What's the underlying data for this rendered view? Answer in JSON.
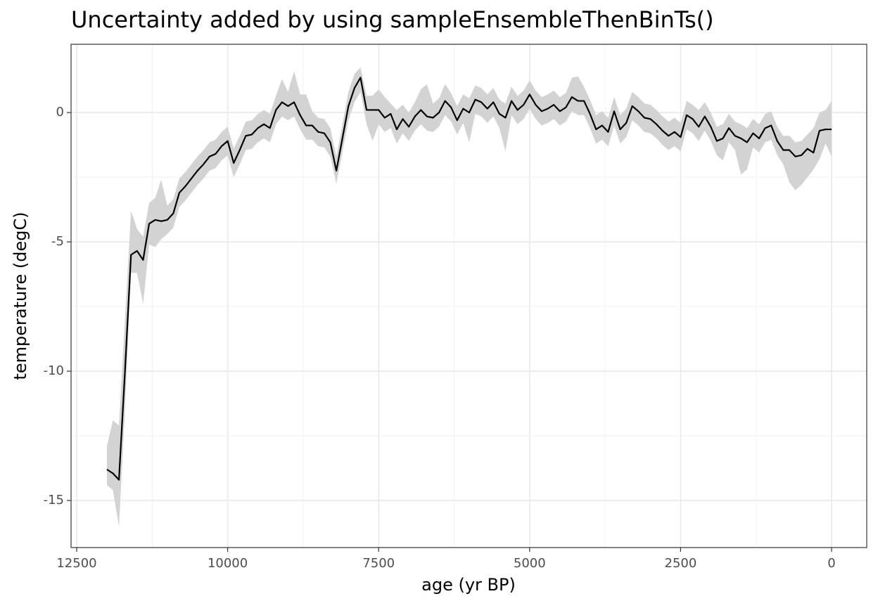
{
  "chart_data": {
    "type": "line",
    "title": "Uncertainty added by using sampleEnsembleThenBinTs()",
    "x_label": "age (yr BP)",
    "y_label": "temperature (degC)",
    "x": [
      12000,
      11900,
      11800,
      11700,
      11600,
      11500,
      11400,
      11300,
      11200,
      11100,
      11000,
      10900,
      10800,
      10700,
      10600,
      10500,
      10400,
      10300,
      10200,
      10100,
      10000,
      9900,
      9800,
      9700,
      9600,
      9500,
      9400,
      9300,
      9200,
      9100,
      9000,
      8900,
      8800,
      8700,
      8600,
      8500,
      8400,
      8300,
      8200,
      8100,
      8000,
      7900,
      7800,
      7700,
      7600,
      7500,
      7400,
      7300,
      7200,
      7100,
      7000,
      6900,
      6800,
      6700,
      6600,
      6500,
      6400,
      6300,
      6200,
      6100,
      6000,
      5900,
      5800,
      5700,
      5600,
      5500,
      5400,
      5300,
      5200,
      5100,
      5000,
      4900,
      4800,
      4700,
      4600,
      4500,
      4400,
      4300,
      4200,
      4100,
      4000,
      3900,
      3800,
      3700,
      3600,
      3500,
      3400,
      3300,
      3200,
      3100,
      3000,
      2900,
      2800,
      2700,
      2600,
      2500,
      2400,
      2300,
      2200,
      2100,
      2000,
      1900,
      1800,
      1700,
      1600,
      1500,
      1400,
      1300,
      1200,
      1100,
      1000,
      900,
      800,
      700,
      600,
      500,
      400,
      300,
      200,
      100,
      0
    ],
    "values": [
      -13.8,
      -13.95,
      -14.2,
      -10,
      -5.5,
      -5.35,
      -5.7,
      -4.3,
      -4.15,
      -4.2,
      -4.15,
      -3.9,
      -3.1,
      -2.85,
      -2.55,
      -2.25,
      -2.0,
      -1.7,
      -1.6,
      -1.3,
      -1.1,
      -1.95,
      -1.45,
      -0.9,
      -0.85,
      -0.6,
      -0.45,
      -0.6,
      0.1,
      0.4,
      0.25,
      0.4,
      -0.1,
      -0.5,
      -0.5,
      -0.75,
      -0.8,
      -1.15,
      -2.25,
      -1.0,
      0.25,
      0.95,
      1.35,
      0.1,
      0.1,
      0.1,
      -0.2,
      -0.05,
      -0.65,
      -0.25,
      -0.55,
      -0.15,
      0.1,
      -0.15,
      -0.2,
      0.0,
      0.45,
      0.2,
      -0.3,
      0.15,
      0.0,
      0.5,
      0.4,
      0.15,
      0.4,
      -0.05,
      -0.2,
      0.45,
      0.1,
      0.3,
      0.7,
      0.3,
      0.05,
      0.15,
      0.3,
      0.05,
      0.2,
      0.6,
      0.45,
      0.45,
      -0.05,
      -0.65,
      -0.5,
      -0.75,
      0.05,
      -0.65,
      -0.4,
      0.25,
      0.05,
      -0.2,
      -0.25,
      -0.45,
      -0.7,
      -0.9,
      -0.75,
      -0.95,
      -0.1,
      -0.25,
      -0.55,
      -0.15,
      -0.55,
      -1.1,
      -1.0,
      -0.6,
      -0.9,
      -1.0,
      -1.15,
      -0.8,
      -1.0,
      -0.6,
      -0.5,
      -1.1,
      -1.45,
      -1.45,
      -1.7,
      -1.65,
      -1.4,
      -1.55,
      -0.7,
      -0.65,
      -0.65
    ],
    "upper": [
      -12.9,
      -11.9,
      -12.1,
      -8.0,
      -3.8,
      -4.5,
      -4.8,
      -3.5,
      -3.3,
      -2.6,
      -3.6,
      -3.35,
      -2.55,
      -2.3,
      -2.0,
      -1.7,
      -1.45,
      -1.15,
      -1.05,
      -0.75,
      -0.55,
      -1.4,
      -0.9,
      -0.35,
      -0.3,
      -0.05,
      0.1,
      -0.05,
      0.65,
      1.3,
      0.8,
      1.6,
      0.7,
      0.7,
      0.05,
      -0.2,
      -0.25,
      -0.6,
      -1.7,
      -0.45,
      0.8,
      1.5,
      1.75,
      0.65,
      0.65,
      0.9,
      0.6,
      0.35,
      0.1,
      0.3,
      0.0,
      0.4,
      0.9,
      1.1,
      0.35,
      0.55,
      1.1,
      0.75,
      0.25,
      0.7,
      0.55,
      1.05,
      0.95,
      0.7,
      0.95,
      0.5,
      0.35,
      1.0,
      0.65,
      0.85,
      1.25,
      0.85,
      0.6,
      0.7,
      0.85,
      0.6,
      0.75,
      1.35,
      1.4,
      1.0,
      0.5,
      -0.1,
      0.05,
      -0.2,
      0.6,
      -0.1,
      0.15,
      0.8,
      0.6,
      0.35,
      0.3,
      0.1,
      -0.15,
      -0.35,
      -0.2,
      -0.4,
      0.45,
      0.3,
      0.1,
      0.4,
      0.0,
      -0.55,
      -0.45,
      -0.05,
      -0.35,
      -0.45,
      -0.6,
      -0.25,
      -0.45,
      -0.05,
      0.05,
      -0.55,
      -0.9,
      -0.9,
      -1.15,
      -1.1,
      -0.85,
      -0.6,
      0.0,
      0.1,
      0.45
    ],
    "lower": [
      -14.4,
      -14.6,
      -16.0,
      -11.5,
      -6.2,
      -6.2,
      -7.4,
      -5.1,
      -5.2,
      -4.9,
      -4.7,
      -4.45,
      -3.65,
      -3.4,
      -3.1,
      -2.8,
      -2.55,
      -2.25,
      -2.15,
      -1.85,
      -1.65,
      -2.5,
      -2.0,
      -1.45,
      -1.4,
      -1.15,
      -1.0,
      -1.15,
      -0.45,
      -0.15,
      -0.3,
      -0.15,
      -0.65,
      -1.05,
      -1.05,
      -1.3,
      -1.35,
      -1.7,
      -2.75,
      -1.55,
      -0.3,
      0.4,
      0.8,
      -0.45,
      -1.1,
      -0.45,
      -0.75,
      -0.6,
      -1.2,
      -0.8,
      -1.1,
      -0.7,
      -0.45,
      -0.7,
      -0.75,
      -0.55,
      -0.1,
      -0.35,
      -0.85,
      -0.4,
      -1.15,
      -0.05,
      -0.15,
      -0.4,
      -0.15,
      -0.6,
      -1.5,
      -0.1,
      -0.45,
      -0.25,
      0.15,
      -0.25,
      -0.5,
      -0.4,
      -0.25,
      -0.5,
      -0.35,
      0.05,
      -0.1,
      -0.1,
      -0.6,
      -1.2,
      -1.05,
      -1.3,
      -0.5,
      -1.2,
      -0.95,
      -0.3,
      -0.5,
      -0.75,
      -0.8,
      -1.0,
      -1.25,
      -1.45,
      -1.3,
      -1.5,
      -0.65,
      -0.8,
      -1.1,
      -0.7,
      -1.1,
      -1.65,
      -1.85,
      -1.15,
      -1.45,
      -2.4,
      -2.2,
      -1.35,
      -1.55,
      -1.15,
      -1.05,
      -1.65,
      -2.0,
      -2.7,
      -3.0,
      -2.8,
      -2.5,
      -2.2,
      -1.8,
      -1.2,
      -1.7
    ],
    "color": "#000000",
    "ribbon_color": "#d3d3d3",
    "xlim": [
      12593,
      -582
    ],
    "ylim": [
      -16.82,
      2.64
    ],
    "xticks": [
      12500,
      10000,
      7500,
      5000,
      2500,
      0
    ],
    "yticks": [
      -15,
      -10,
      -5,
      0
    ],
    "grid": true
  }
}
